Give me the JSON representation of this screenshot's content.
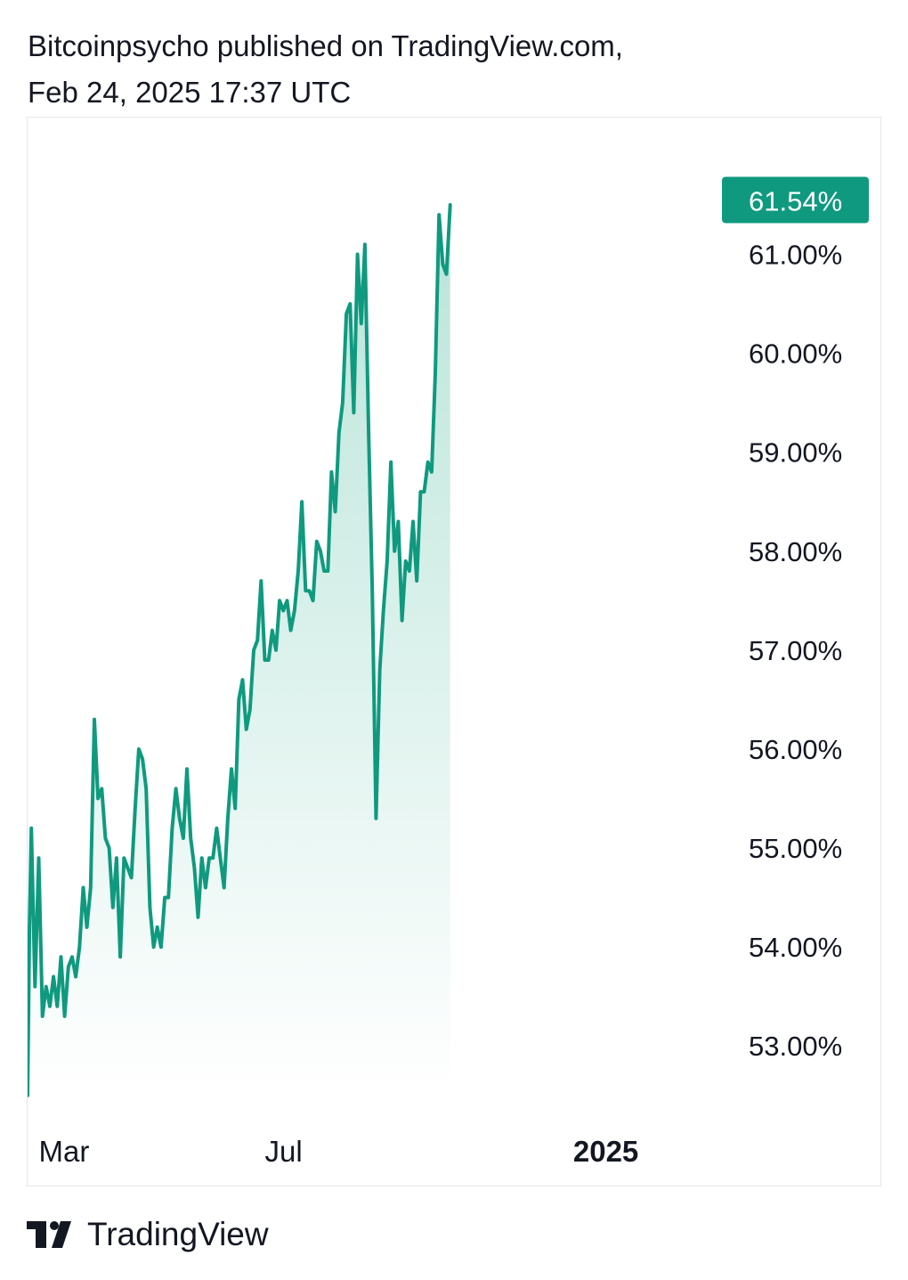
{
  "header": {
    "line1": "Bitcoinpsycho published on TradingView.com,",
    "line2": "Feb 24, 2025 17:37 UTC"
  },
  "footer": {
    "brand": "TradingView"
  },
  "colors": {
    "line": "#0f9a7f",
    "fill_top": "#b9e4d9",
    "badge_bg": "#0f9a7f",
    "badge_text": "#ffffff",
    "axis_text": "#131722"
  },
  "chart_data": {
    "type": "area",
    "title": "",
    "xlabel": "",
    "ylabel": "",
    "y_unit": "%",
    "ylim": [
      52.3,
      62.1
    ],
    "x_range": [
      "2024-02-24",
      "2025-02-24"
    ],
    "y_ticks": [
      "61.00%",
      "60.00%",
      "59.00%",
      "58.00%",
      "57.00%",
      "56.00%",
      "55.00%",
      "54.00%",
      "53.00%"
    ],
    "x_ticks": [
      {
        "label": "Mar",
        "date": "2024-03-01",
        "bold": false
      },
      {
        "label": "Jul",
        "date": "2024-07-01",
        "bold": false
      },
      {
        "label": "2025",
        "date": "2025-01-01",
        "bold": true
      }
    ],
    "last_value_label": "61.54%",
    "last_value": 61.54,
    "series": [
      {
        "values": [
          [
            "2024-02-24",
            52.5
          ],
          [
            "2024-02-25",
            54.2
          ],
          [
            "2024-02-26",
            55.2
          ],
          [
            "2024-02-28",
            53.6
          ],
          [
            "2024-03-01",
            54.9
          ],
          [
            "2024-03-03",
            53.3
          ],
          [
            "2024-03-05",
            53.6
          ],
          [
            "2024-03-07",
            53.4
          ],
          [
            "2024-03-09",
            53.7
          ],
          [
            "2024-03-11",
            53.4
          ],
          [
            "2024-03-13",
            53.9
          ],
          [
            "2024-03-15",
            53.3
          ],
          [
            "2024-03-17",
            53.8
          ],
          [
            "2024-03-19",
            53.9
          ],
          [
            "2024-03-21",
            53.7
          ],
          [
            "2024-03-23",
            54.0
          ],
          [
            "2024-03-25",
            54.6
          ],
          [
            "2024-03-27",
            54.2
          ],
          [
            "2024-03-29",
            54.6
          ],
          [
            "2024-03-31",
            56.3
          ],
          [
            "2024-04-02",
            55.5
          ],
          [
            "2024-04-04",
            55.6
          ],
          [
            "2024-04-06",
            55.1
          ],
          [
            "2024-04-08",
            55.0
          ],
          [
            "2024-04-10",
            54.4
          ],
          [
            "2024-04-12",
            54.9
          ],
          [
            "2024-04-14",
            53.9
          ],
          [
            "2024-04-16",
            54.9
          ],
          [
            "2024-04-18",
            54.8
          ],
          [
            "2024-04-20",
            54.7
          ],
          [
            "2024-04-22",
            55.4
          ],
          [
            "2024-04-24",
            56.0
          ],
          [
            "2024-04-26",
            55.9
          ],
          [
            "2024-04-28",
            55.6
          ],
          [
            "2024-04-30",
            54.4
          ],
          [
            "2024-05-02",
            54.0
          ],
          [
            "2024-05-04",
            54.2
          ],
          [
            "2024-05-06",
            54.0
          ],
          [
            "2024-05-08",
            54.5
          ],
          [
            "2024-05-10",
            54.5
          ],
          [
            "2024-05-12",
            55.2
          ],
          [
            "2024-05-14",
            55.6
          ],
          [
            "2024-05-16",
            55.3
          ],
          [
            "2024-05-18",
            55.1
          ],
          [
            "2024-05-20",
            55.8
          ],
          [
            "2024-05-22",
            55.1
          ],
          [
            "2024-05-24",
            54.8
          ],
          [
            "2024-05-26",
            54.3
          ],
          [
            "2024-05-28",
            54.9
          ],
          [
            "2024-05-30",
            54.6
          ],
          [
            "2024-06-01",
            54.9
          ],
          [
            "2024-06-03",
            54.9
          ],
          [
            "2024-06-05",
            55.2
          ],
          [
            "2024-06-07",
            54.9
          ],
          [
            "2024-06-09",
            54.6
          ],
          [
            "2024-06-11",
            55.3
          ],
          [
            "2024-06-13",
            55.8
          ],
          [
            "2024-06-15",
            55.4
          ],
          [
            "2024-06-17",
            56.5
          ],
          [
            "2024-06-19",
            56.7
          ],
          [
            "2024-06-21",
            56.2
          ],
          [
            "2024-06-23",
            56.4
          ],
          [
            "2024-06-25",
            57.0
          ],
          [
            "2024-06-27",
            57.1
          ],
          [
            "2024-06-29",
            57.7
          ],
          [
            "2024-07-01",
            56.9
          ],
          [
            "2024-07-03",
            56.9
          ],
          [
            "2024-07-05",
            57.2
          ],
          [
            "2024-07-07",
            57.0
          ],
          [
            "2024-07-09",
            57.5
          ],
          [
            "2024-07-11",
            57.4
          ],
          [
            "2024-07-13",
            57.5
          ],
          [
            "2024-07-15",
            57.2
          ],
          [
            "2024-07-17",
            57.4
          ],
          [
            "2024-07-19",
            57.8
          ],
          [
            "2024-07-21",
            58.5
          ],
          [
            "2024-07-23",
            57.6
          ],
          [
            "2024-07-25",
            57.6
          ],
          [
            "2024-07-27",
            57.5
          ],
          [
            "2024-07-29",
            58.1
          ],
          [
            "2024-07-31",
            58.0
          ],
          [
            "2024-08-02",
            57.8
          ],
          [
            "2024-08-04",
            57.8
          ],
          [
            "2024-08-06",
            58.8
          ],
          [
            "2024-08-08",
            58.4
          ],
          [
            "2024-08-10",
            59.2
          ],
          [
            "2024-08-12",
            59.5
          ],
          [
            "2024-08-14",
            60.4
          ],
          [
            "2024-08-16",
            60.5
          ],
          [
            "2024-08-18",
            59.4
          ],
          [
            "2024-08-20",
            61.0
          ],
          [
            "2024-08-22",
            60.3
          ],
          [
            "2024-08-24",
            61.1
          ],
          [
            "2024-08-26",
            59.2
          ],
          [
            "2024-08-28",
            57.6
          ],
          [
            "2024-08-30",
            55.3
          ],
          [
            "2024-09-01",
            56.8
          ],
          [
            "2024-09-03",
            57.4
          ],
          [
            "2024-09-05",
            57.9
          ],
          [
            "2024-09-07",
            58.9
          ],
          [
            "2024-09-09",
            58.0
          ],
          [
            "2024-09-11",
            58.3
          ],
          [
            "2024-09-13",
            57.3
          ],
          [
            "2024-09-15",
            57.9
          ],
          [
            "2024-09-17",
            57.8
          ],
          [
            "2024-09-19",
            58.3
          ],
          [
            "2024-09-21",
            57.7
          ],
          [
            "2024-09-23",
            58.6
          ],
          [
            "2024-09-25",
            58.6
          ],
          [
            "2024-09-27",
            58.9
          ],
          [
            "2024-09-29",
            58.8
          ],
          [
            "2024-10-01",
            59.8
          ],
          [
            "2024-10-03",
            61.4
          ],
          [
            "2024-10-05",
            60.9
          ],
          [
            "2024-10-07",
            60.8
          ],
          [
            "2024-10-09",
            61.5
          ]
        ]
      }
    ]
  }
}
